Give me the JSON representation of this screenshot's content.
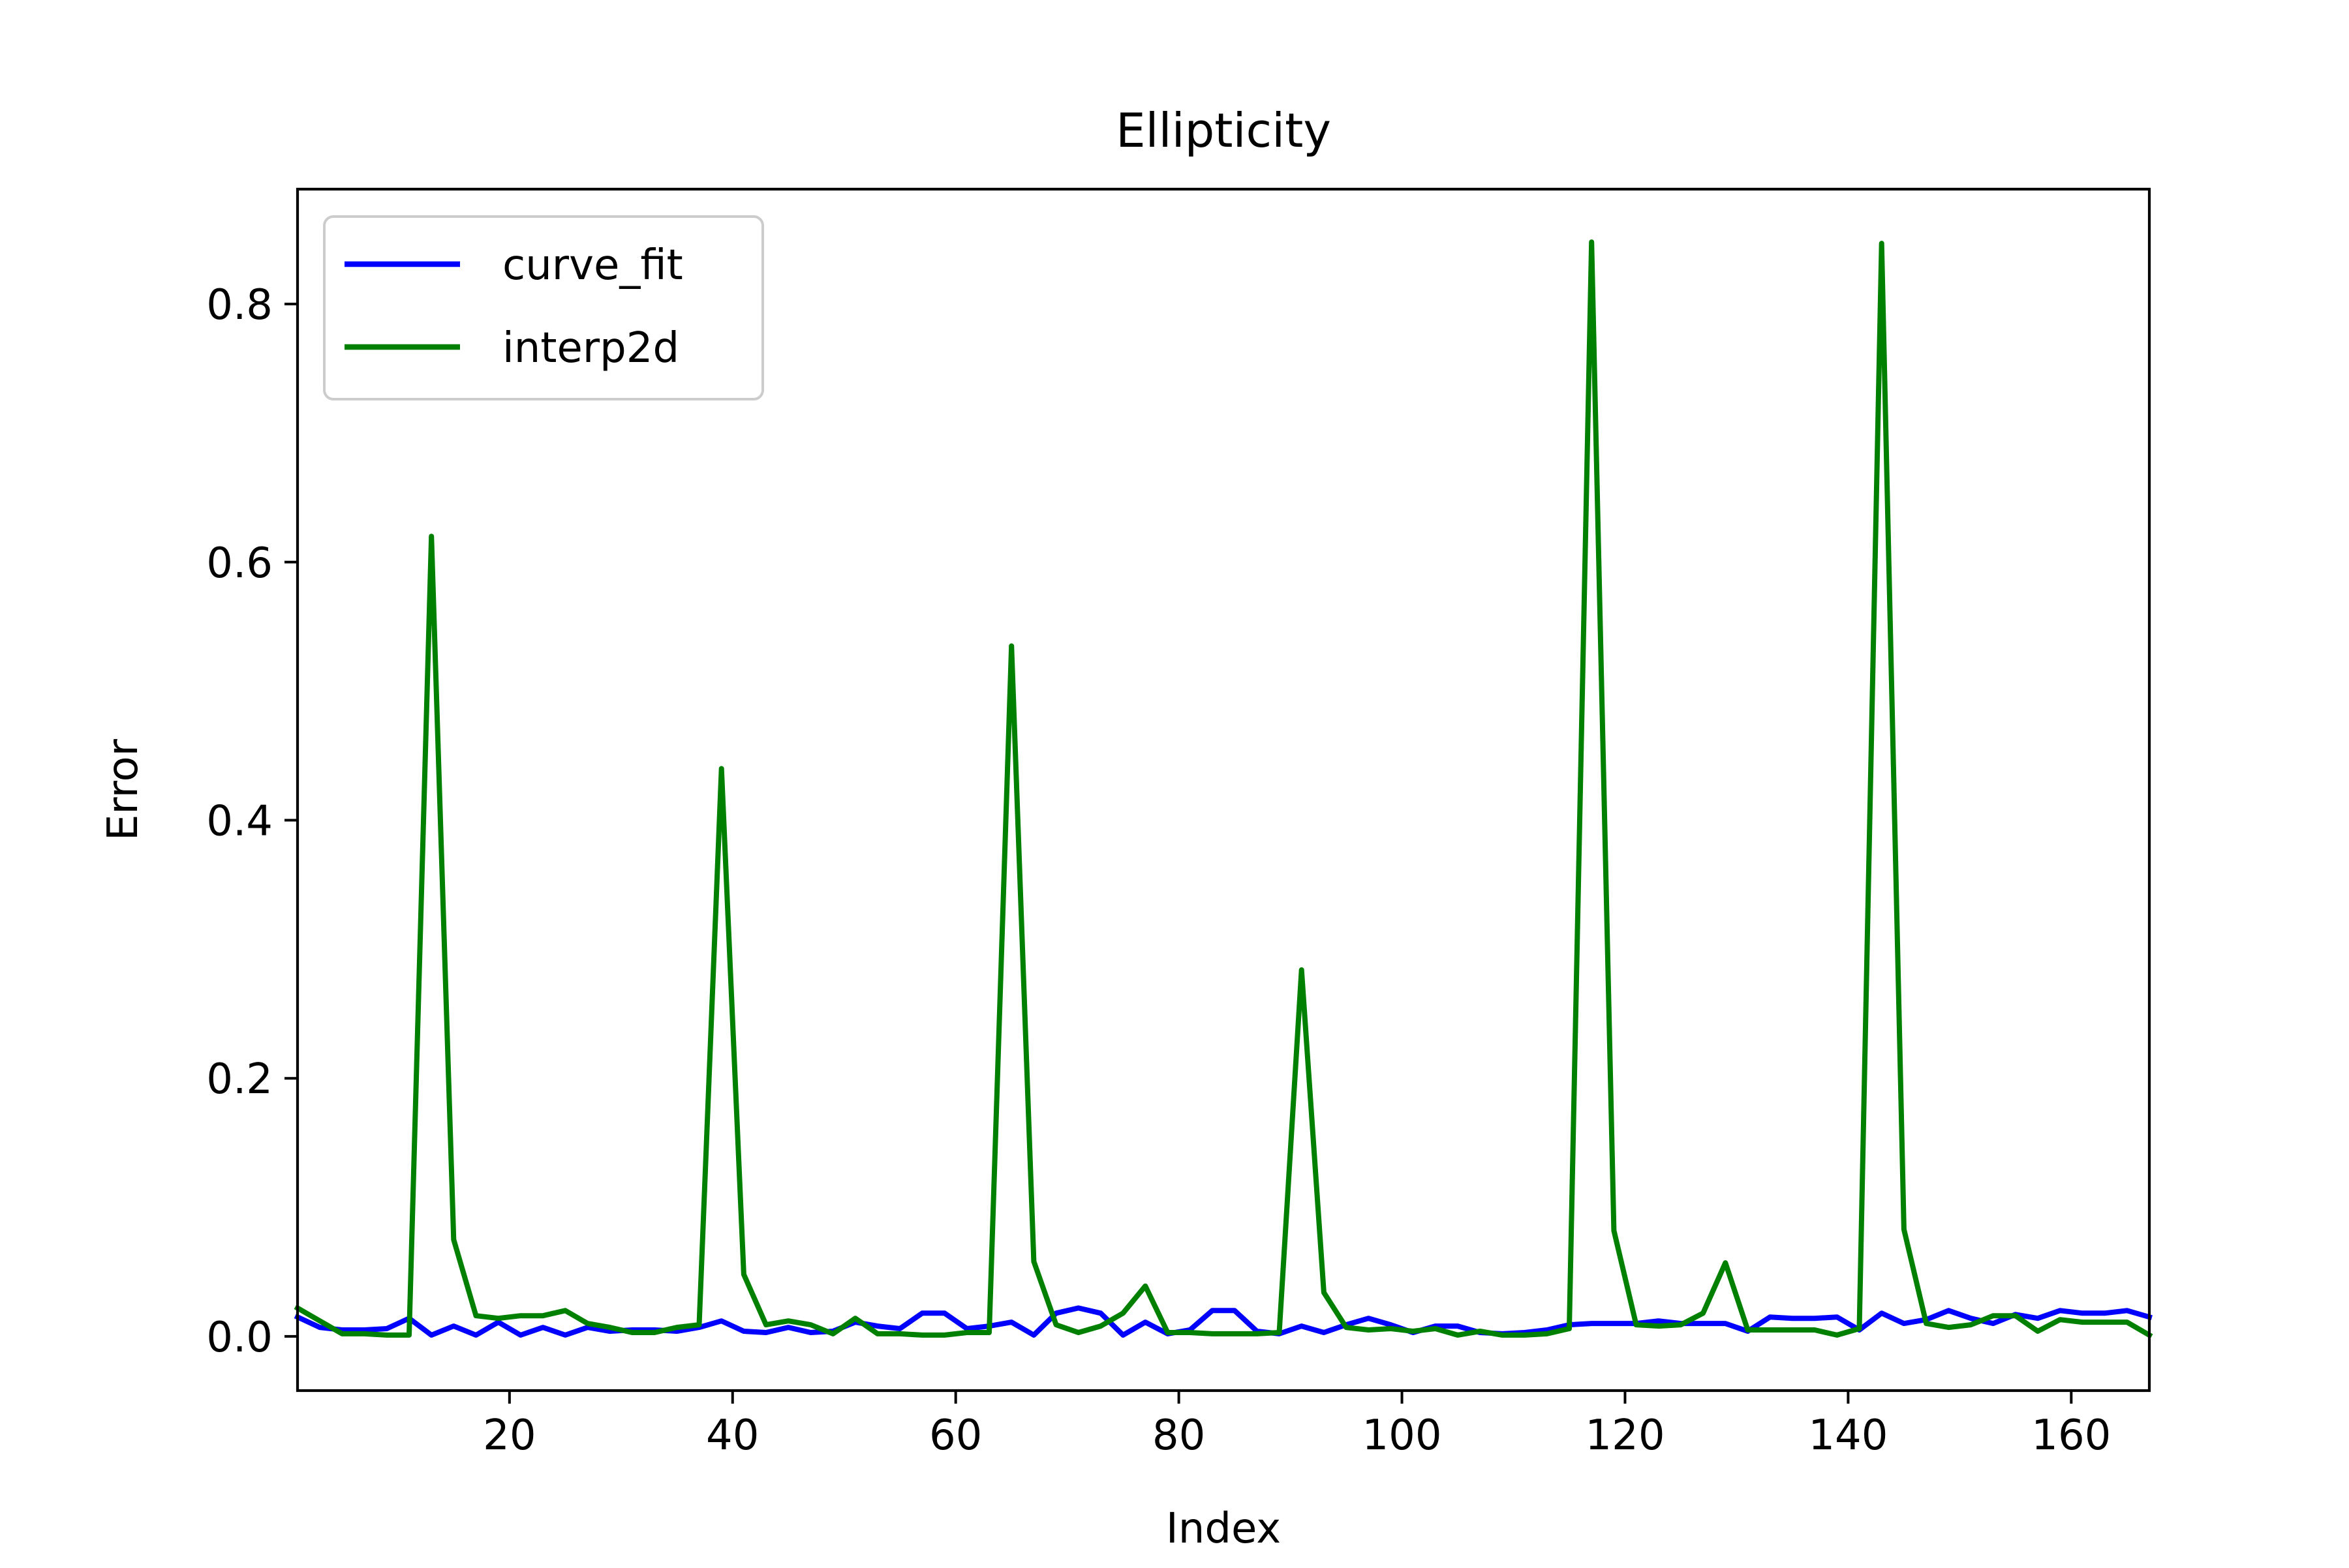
{
  "chart_data": {
    "type": "line",
    "title": "Ellipticity",
    "xlabel": "Index",
    "ylabel": "Error",
    "xlim": [
      1,
      167
    ],
    "ylim": [
      -0.042,
      0.889
    ],
    "xticks": [
      20,
      40,
      60,
      80,
      100,
      120,
      140,
      160
    ],
    "xtick_labels": [
      "20",
      "40",
      "60",
      "80",
      "100",
      "120",
      "140",
      "160"
    ],
    "yticks": [
      0.0,
      0.2,
      0.4,
      0.6,
      0.8
    ],
    "ytick_labels": [
      "0.0",
      "0.2",
      "0.4",
      "0.6",
      "0.8"
    ],
    "grid": false,
    "legend": {
      "placement": "upper-left",
      "entries": [
        "curve_fit",
        "interp2d"
      ]
    },
    "x": [
      1,
      3,
      5,
      7,
      9,
      11,
      13,
      15,
      17,
      19,
      21,
      23,
      25,
      27,
      29,
      31,
      33,
      35,
      37,
      39,
      41,
      43,
      45,
      47,
      49,
      51,
      53,
      55,
      57,
      59,
      61,
      63,
      65,
      67,
      69,
      71,
      73,
      75,
      77,
      79,
      81,
      83,
      85,
      87,
      89,
      91,
      93,
      95,
      97,
      99,
      101,
      103,
      105,
      107,
      109,
      111,
      113,
      115,
      117,
      119,
      121,
      123,
      125,
      127,
      129,
      131,
      133,
      135,
      137,
      139,
      141,
      143,
      145,
      147,
      149,
      151,
      153,
      155,
      157,
      159,
      161,
      163,
      165,
      167
    ],
    "series": [
      {
        "name": "curve_fit",
        "color": "#0000ff",
        "values": [
          0.015,
          0.007,
          0.005,
          0.005,
          0.006,
          0.014,
          0.001,
          0.008,
          0.001,
          0.011,
          0.001,
          0.007,
          0.001,
          0.007,
          0.004,
          0.005,
          0.005,
          0.004,
          0.007,
          0.012,
          0.004,
          0.003,
          0.007,
          0.003,
          0.004,
          0.011,
          0.008,
          0.006,
          0.018,
          0.018,
          0.006,
          0.008,
          0.011,
          0.001,
          0.018,
          0.022,
          0.018,
          0.001,
          0.011,
          0.002,
          0.005,
          0.02,
          0.02,
          0.004,
          0.002,
          0.008,
          0.003,
          0.009,
          0.014,
          0.009,
          0.003,
          0.008,
          0.008,
          0.003,
          0.002,
          0.003,
          0.005,
          0.009,
          0.01,
          0.01,
          0.01,
          0.012,
          0.01,
          0.01,
          0.01,
          0.004,
          0.015,
          0.014,
          0.014,
          0.015,
          0.005,
          0.018,
          0.01,
          0.013,
          0.02,
          0.014,
          0.01,
          0.017,
          0.014,
          0.02,
          0.018,
          0.018,
          0.02,
          0.015
        ]
      },
      {
        "name": "interp2d",
        "color": "#008000",
        "values": [
          0.022,
          0.012,
          0.002,
          0.002,
          0.001,
          0.001,
          0.62,
          0.075,
          0.016,
          0.014,
          0.016,
          0.016,
          0.02,
          0.01,
          0.007,
          0.003,
          0.003,
          0.007,
          0.009,
          0.44,
          0.048,
          0.009,
          0.012,
          0.009,
          0.002,
          0.014,
          0.002,
          0.002,
          0.001,
          0.001,
          0.003,
          0.003,
          0.535,
          0.058,
          0.009,
          0.003,
          0.008,
          0.018,
          0.039,
          0.003,
          0.003,
          0.002,
          0.002,
          0.002,
          0.003,
          0.284,
          0.034,
          0.007,
          0.005,
          0.006,
          0.004,
          0.006,
          0.001,
          0.004,
          0.001,
          0.001,
          0.002,
          0.006,
          0.848,
          0.082,
          0.009,
          0.008,
          0.009,
          0.018,
          0.057,
          0.005,
          0.005,
          0.005,
          0.005,
          0.001,
          0.006,
          0.847,
          0.083,
          0.01,
          0.007,
          0.009,
          0.016,
          0.016,
          0.004,
          0.013,
          0.011,
          0.011,
          0.011,
          0.001
        ]
      }
    ]
  }
}
